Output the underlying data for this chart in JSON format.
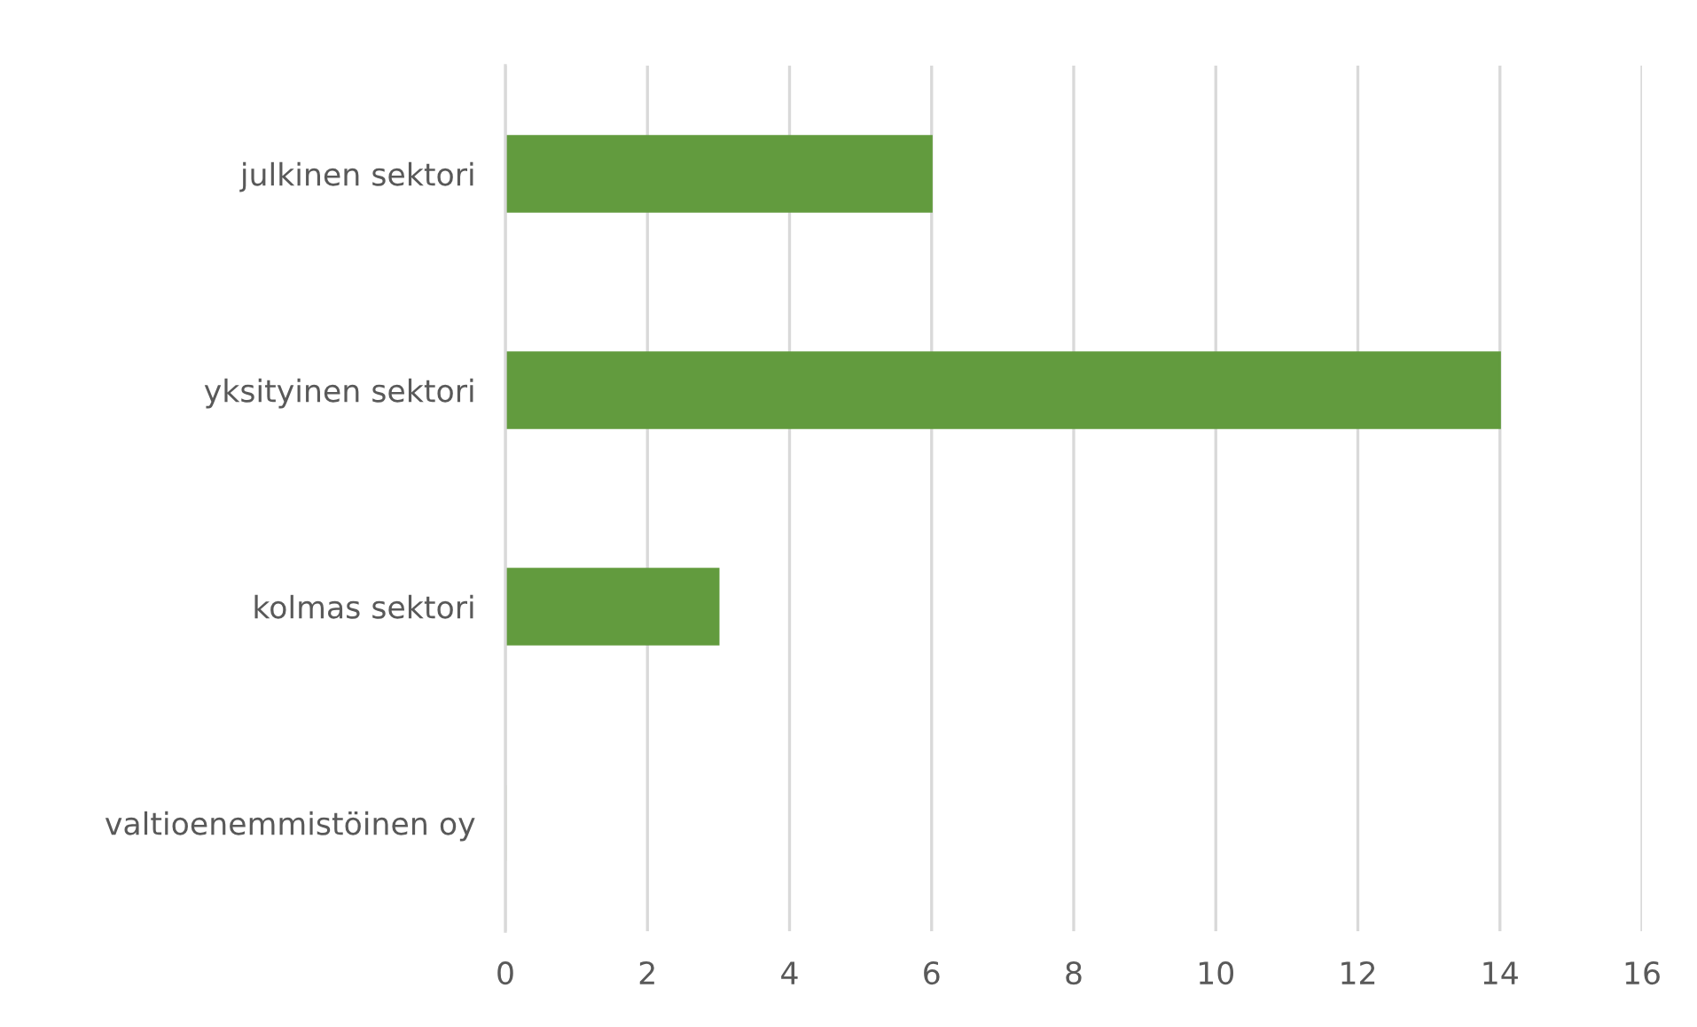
{
  "chart_data": {
    "type": "bar",
    "orientation": "horizontal",
    "categories": [
      "julkinen sektori",
      "yksityinen sektori",
      "kolmas sektori",
      "valtioenemmistöinen oy"
    ],
    "values": [
      6,
      14,
      3,
      0
    ],
    "color": "#629b3e",
    "xlim": [
      0,
      16
    ],
    "xticks": [
      0,
      2,
      4,
      6,
      8,
      10,
      12,
      14,
      16
    ],
    "grid": "x",
    "legend": false
  }
}
